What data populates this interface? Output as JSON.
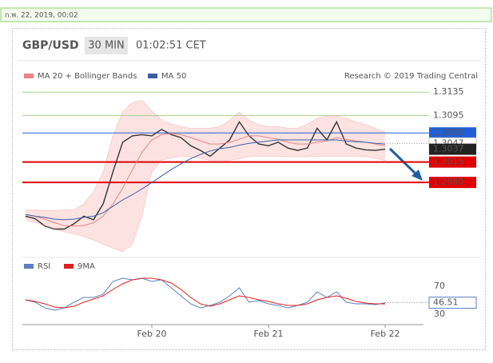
{
  "header": {
    "date": "ก.พ. 22, 2019, 00:02",
    "symbol": "GBP/USD",
    "interval": "30 MIN",
    "time": "01:02:51 CET"
  },
  "chart_data": [
    {
      "type": "line",
      "ylim": [
        1.2854,
        1.3149
      ],
      "source": "Research © 2019 Trading Central",
      "series": [
        {
          "color": "#333333",
          "values": [
            1.2922,
            1.2918,
            1.2905,
            1.29,
            1.29,
            1.2909,
            1.2922,
            1.2916,
            1.2943,
            1.2998,
            1.3049,
            1.306,
            1.3062,
            1.306,
            1.3071,
            1.3062,
            1.3057,
            1.3043,
            1.3035,
            1.3025,
            1.3039,
            1.3053,
            1.3084,
            1.306,
            1.3046,
            1.3043,
            1.3049,
            1.3039,
            1.3035,
            1.3039,
            1.3073,
            1.3053,
            1.3084,
            1.3046,
            1.3039,
            1.3036,
            1.3035,
            1.3037
          ]
        },
        {
          "name": "MA 20 + Bollinger Bands",
          "color": "#e88585",
          "band_color": "#fde2e2",
          "values": [
            1.2925,
            1.2922,
            1.2917,
            1.2911,
            1.2906,
            1.2905,
            1.2906,
            1.2911,
            1.2922,
            1.2943,
            1.297,
            1.3002,
            1.3032,
            1.3053,
            1.3062,
            1.3064,
            1.3062,
            1.3057,
            1.3051,
            1.3046,
            1.3046,
            1.3049,
            1.3054,
            1.306,
            1.306,
            1.3057,
            1.3054,
            1.3049,
            1.3046,
            1.3046,
            1.3049,
            1.3051,
            1.3057,
            1.3054,
            1.3051,
            1.3049,
            1.3046,
            1.3043
          ],
          "upper": [
            1.2933,
            1.2933,
            1.2932,
            1.2932,
            1.2933,
            1.2933,
            1.2943,
            1.2964,
            1.2998,
            1.306,
            1.3101,
            1.3117,
            1.3121,
            1.3103,
            1.3087,
            1.308,
            1.3076,
            1.3073,
            1.3073,
            1.3073,
            1.3076,
            1.3087,
            1.3101,
            1.3087,
            1.3079,
            1.3076,
            1.3076,
            1.3073,
            1.3073,
            1.308,
            1.309,
            1.3094,
            1.3094,
            1.309,
            1.3084,
            1.3079,
            1.3073,
            1.3066
          ],
          "lower": [
            1.2916,
            1.2911,
            1.2906,
            1.29,
            1.2895,
            1.2892,
            1.2887,
            1.2881,
            1.2874,
            1.2867,
            1.2861,
            1.2874,
            1.2922,
            1.2998,
            1.3018,
            1.3022,
            1.3025,
            1.3024,
            1.3021,
            1.3018,
            1.3018,
            1.3018,
            1.3021,
            1.3024,
            1.3025,
            1.3025,
            1.3025,
            1.3024,
            1.3024,
            1.3024,
            1.3025,
            1.3025,
            1.3025,
            1.3025,
            1.3025,
            1.3024,
            1.3021,
            1.3018
          ]
        },
        {
          "name": "MA 50",
          "color": "#3a5fa8",
          "values": [
            1.2925,
            1.2922,
            1.292,
            1.2917,
            1.2916,
            1.2917,
            1.292,
            1.2922,
            1.2928,
            1.2939,
            1.295,
            1.2959,
            1.2969,
            1.298,
            1.2991,
            1.3002,
            1.3012,
            1.3021,
            1.3028,
            1.3034,
            1.3038,
            1.304,
            1.3044,
            1.3047,
            1.3049,
            1.3051,
            1.3053,
            1.3053,
            1.3053,
            1.3053,
            1.3053,
            1.3053,
            1.3053,
            1.3051,
            1.305,
            1.3049,
            1.3047,
            1.3046
          ]
        }
      ],
      "levels": [
        {
          "value": 1.3135,
          "color": "#a9d18e",
          "style": "solid"
        },
        {
          "value": 1.3095,
          "color": "#a9d18e",
          "style": "solid"
        },
        {
          "value": 1.3065,
          "color": "#1f5fd6",
          "style": "boxed"
        },
        {
          "value": 1.3015,
          "color": "#e00000",
          "style": "thick"
        },
        {
          "value": 1.298,
          "label": "1.2980",
          "color": "#e00000",
          "style": "thick"
        },
        {
          "value": 1.3047,
          "color": "#999999",
          "style": "dotted"
        }
      ],
      "last_color": "#222222"
    },
    {
      "type": "line",
      "ylim": [
        20,
        90
      ],
      "yticks": [
        70,
        30
      ],
      "categories": [
        null,
        null,
        null,
        null,
        null,
        null,
        null,
        null,
        null,
        null,
        null,
        null,
        null,
        "Feb 20",
        null,
        null,
        null,
        null,
        null,
        null,
        null,
        null,
        null,
        null,
        null,
        "Feb 21",
        null,
        null,
        null,
        null,
        null,
        null,
        null,
        null,
        null,
        null,
        null,
        "Feb 22"
      ],
      "series": [
        {
          "name": "RSI",
          "color": "#5b7fc4",
          "values": [
            50.6,
            47.1,
            39.1,
            35.7,
            39.1,
            47.1,
            54.0,
            54.0,
            58.6,
            76.9,
            81.4,
            79.1,
            81.4,
            76.9,
            79.1,
            67.7,
            56.3,
            44.9,
            39.1,
            42.6,
            47.1,
            56.3,
            67.7,
            47.1,
            49.4,
            44.9,
            42.6,
            39.1,
            42.6,
            47.1,
            62.0,
            54.0,
            62.0,
            47.1,
            44.9,
            44.9,
            43.7,
            46.51
          ]
        },
        {
          "name": "9MA",
          "color": "#e02020",
          "values": [
            50.6,
            48.3,
            44.9,
            40.3,
            39.1,
            41.4,
            47.1,
            51.7,
            56.3,
            65.4,
            73.4,
            79.1,
            81.4,
            81.4,
            79.1,
            74.6,
            65.4,
            54.0,
            44.9,
            41.4,
            44.9,
            50.6,
            56.3,
            54.0,
            50.6,
            48.3,
            44.9,
            42.6,
            42.6,
            44.9,
            50.6,
            54.0,
            56.3,
            52.9,
            48.3,
            46.0,
            44.9,
            44.9
          ]
        }
      ]
    }
  ]
}
